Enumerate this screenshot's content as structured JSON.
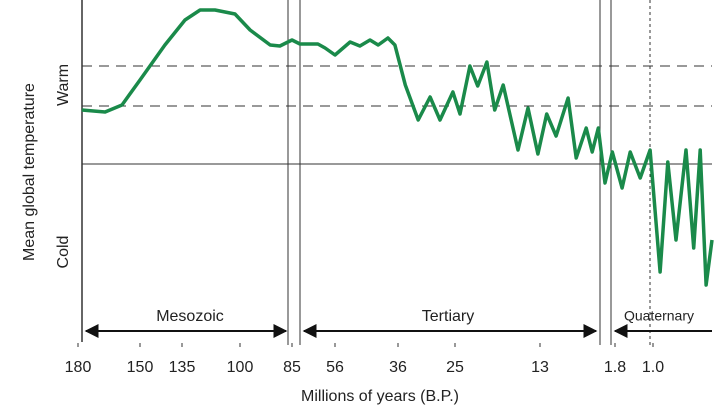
{
  "chart_data": {
    "type": "line",
    "y_label": "Mean global temperature",
    "y_annotations": [
      "Warm",
      "Cold"
    ],
    "x_label": "Millions of years (B.P.)",
    "era_labels": [
      "Mesozoic",
      "Tertiary",
      "Quaternary"
    ],
    "xlim": [
      180,
      0
    ],
    "xticks": [
      180,
      150,
      135,
      100,
      85,
      56,
      36,
      25,
      13,
      1.8,
      {
        "value": 1,
        "label": "1.0"
      }
    ],
    "ylim": [
      0,
      34
    ],
    "color": "#1a8a4a",
    "x": [
      178.1,
      166.9,
      158.7,
      150,
      141.1,
      133.2,
      124.1,
      115.1,
      103,
      97.1,
      91.3,
      88.5,
      85,
      79.6,
      72.9,
      67.5,
      62.7,
      56,
      51.2,
      48.1,
      44.9,
      42.3,
      39.2,
      37,
      34.6,
      32.1,
      29.8,
      27.9,
      25.4,
      24.3,
      22.9,
      21.8,
      20.5,
      19.4,
      18.2,
      16.1,
      14.7,
      13.3,
      12,
      10.6,
      8.8,
      7.6,
      6.1,
      5.2,
      4.3,
      3.3,
      2.2,
      1.65,
      1.48,
      1.27,
      1.06,
      0.88,
      0.75,
      0.61,
      0.44,
      0.31,
      0.2,
      0.1,
      0
    ],
    "values": [
      23,
      22.8,
      23.5,
      26,
      29.5,
      32,
      33,
      33,
      32.6,
      31,
      29.5,
      29.4,
      30,
      29.6,
      29.6,
      29.6,
      29.2,
      28.5,
      29.8,
      29.4,
      30,
      29.5,
      30.2,
      29.5,
      25.5,
      22,
      24.3,
      22,
      24.8,
      22.6,
      27.4,
      25.4,
      27.8,
      23,
      25.5,
      19,
      23.2,
      18.6,
      22.6,
      20.4,
      24.2,
      18.2,
      21.2,
      18.8,
      21.2,
      15.7,
      18.8,
      15.2,
      18.8,
      16.2,
      19,
      6.8,
      17.8,
      10,
      19,
      9.2,
      19,
      5.5,
      10
    ]
  }
}
